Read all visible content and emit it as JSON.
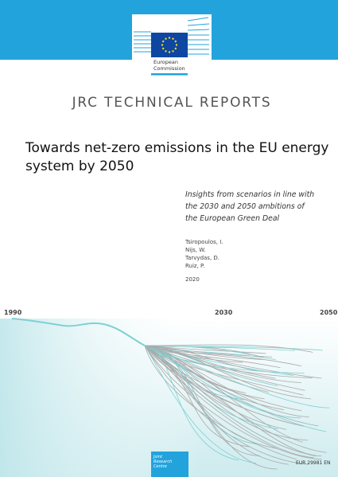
{
  "header": {
    "logo_text": [
      "European",
      "Commission"
    ],
    "series": "JRC TECHNICAL REPORTS"
  },
  "title": [
    "Towards net-zero emissions in the EU energy",
    "system by 2050"
  ],
  "subtitle": [
    "Insights from scenarios in line with",
    "the 2030 and 2050 ambitions of",
    "the European Green Deal"
  ],
  "authors": [
    "Tsiropoulos, I.",
    "Nijs, W.",
    "Tarvydas, D.",
    "Ruiz, P."
  ],
  "year": "2020",
  "figure": {
    "labels": [
      "1990",
      "2030",
      "2050"
    ]
  },
  "footer": {
    "centre": [
      "Joint",
      "Research",
      "Centre"
    ],
    "report_number": "EUR 29981 EN"
  }
}
